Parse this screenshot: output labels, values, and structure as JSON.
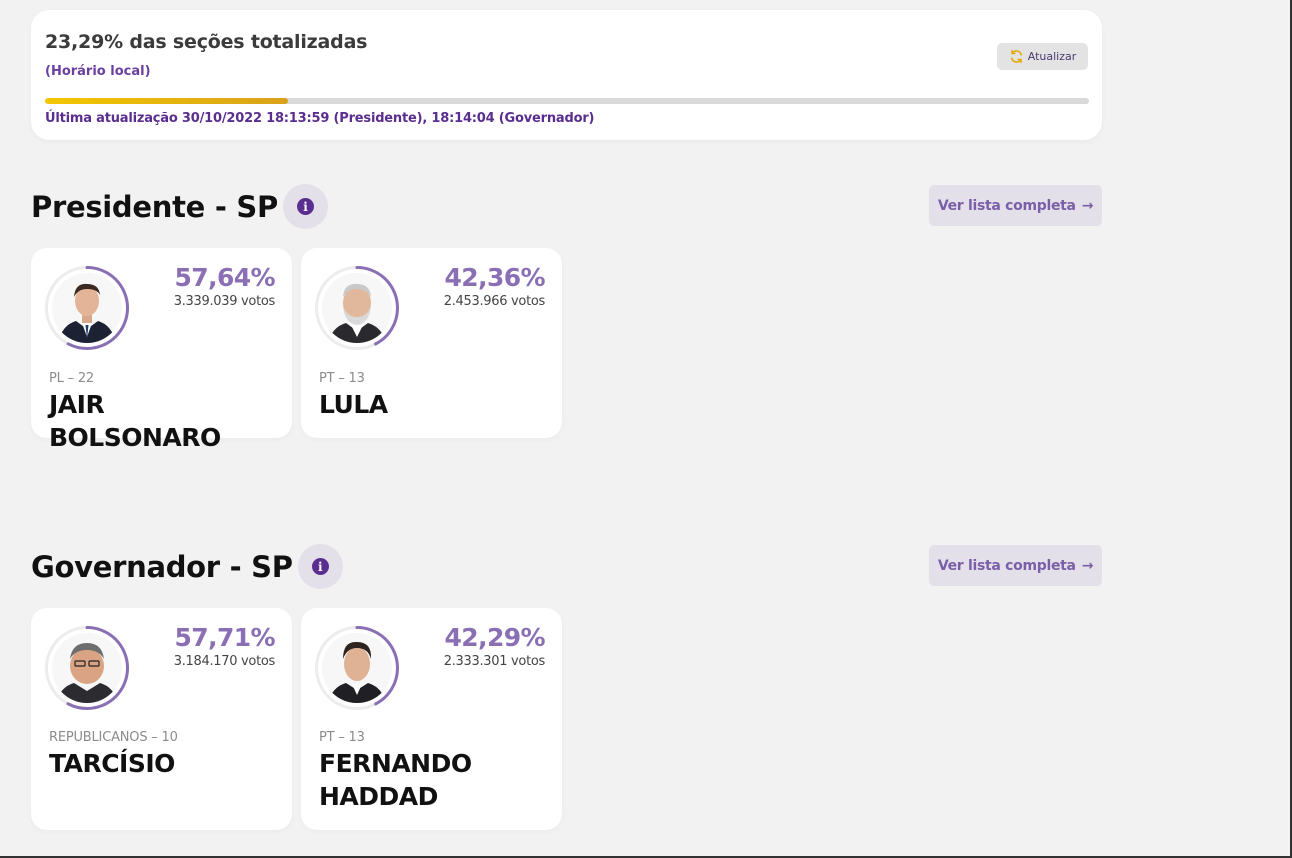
{
  "status": {
    "title": "23,29% das seções totalizadas",
    "subtitle": "(Horário local)",
    "refresh_label": "Atualizar",
    "progress": 0.2329,
    "last_update": "Última atualização 30/10/2022 18:13:59 (Presidente), 18:14:04 (Governador)"
  },
  "colors": {
    "accent": "#5a2e8f",
    "percent": "#8a6fb5",
    "progress_start": "#f4c600",
    "progress_end": "#d9a21b",
    "ring": "#8a6fb5",
    "ring_track": "#ececec"
  },
  "sections": [
    {
      "title": "Presidente - SP",
      "info_icon": "i",
      "list_label": "Ver lista completa",
      "list_arrow": "→",
      "candidates": [
        {
          "pct": "57,64%",
          "share": 0.5764,
          "votes": "3.339.039 votos",
          "party": "PL – 22",
          "name": "JAIR BOLSONARO"
        },
        {
          "pct": "42,36%",
          "share": 0.4236,
          "votes": "2.453.966 votos",
          "party": "PT – 13",
          "name": "LULA"
        }
      ]
    },
    {
      "title": "Governador - SP",
      "info_icon": "i",
      "list_label": "Ver lista completa",
      "list_arrow": "→",
      "candidates": [
        {
          "pct": "57,71%",
          "share": 0.5771,
          "votes": "3.184.170 votos",
          "party": "REPUBLICANOS – 10",
          "name": "TARCÍSIO"
        },
        {
          "pct": "42,29%",
          "share": 0.4229,
          "votes": "2.333.301 votos",
          "party": "PT – 13",
          "name": "FERNANDO HADDAD"
        }
      ]
    }
  ]
}
